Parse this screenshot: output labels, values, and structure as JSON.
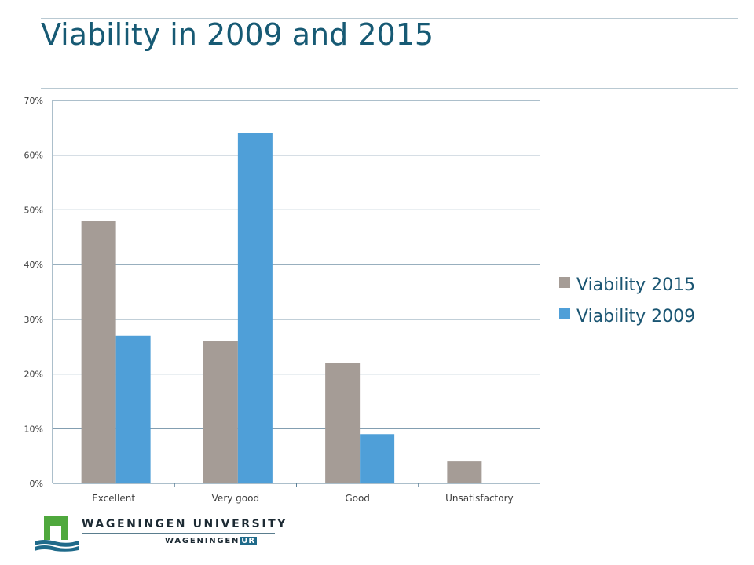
{
  "slide": {
    "title": "Viability in 2009 and 2015"
  },
  "brand": {
    "line1": "WAGENINGEN UNIVERSITY",
    "line2_prefix": "WAGENINGEN",
    "line2_suffix": "UR"
  },
  "chart_data": {
    "type": "bar",
    "categories": [
      "Excellent",
      "Very good",
      "Good",
      "Unsatisfactory"
    ],
    "series": [
      {
        "name": "Viability 2015",
        "values": [
          48,
          26,
          22,
          4
        ],
        "color": "#a59c96"
      },
      {
        "name": "Viability 2009",
        "values": [
          27,
          64,
          9,
          0
        ],
        "color": "#4f9fd8"
      }
    ],
    "ylim": [
      0,
      70
    ],
    "yticks": [
      0,
      10,
      20,
      30,
      40,
      50,
      60,
      70
    ],
    "y_format": "percent",
    "grid": true,
    "legend": "right"
  }
}
